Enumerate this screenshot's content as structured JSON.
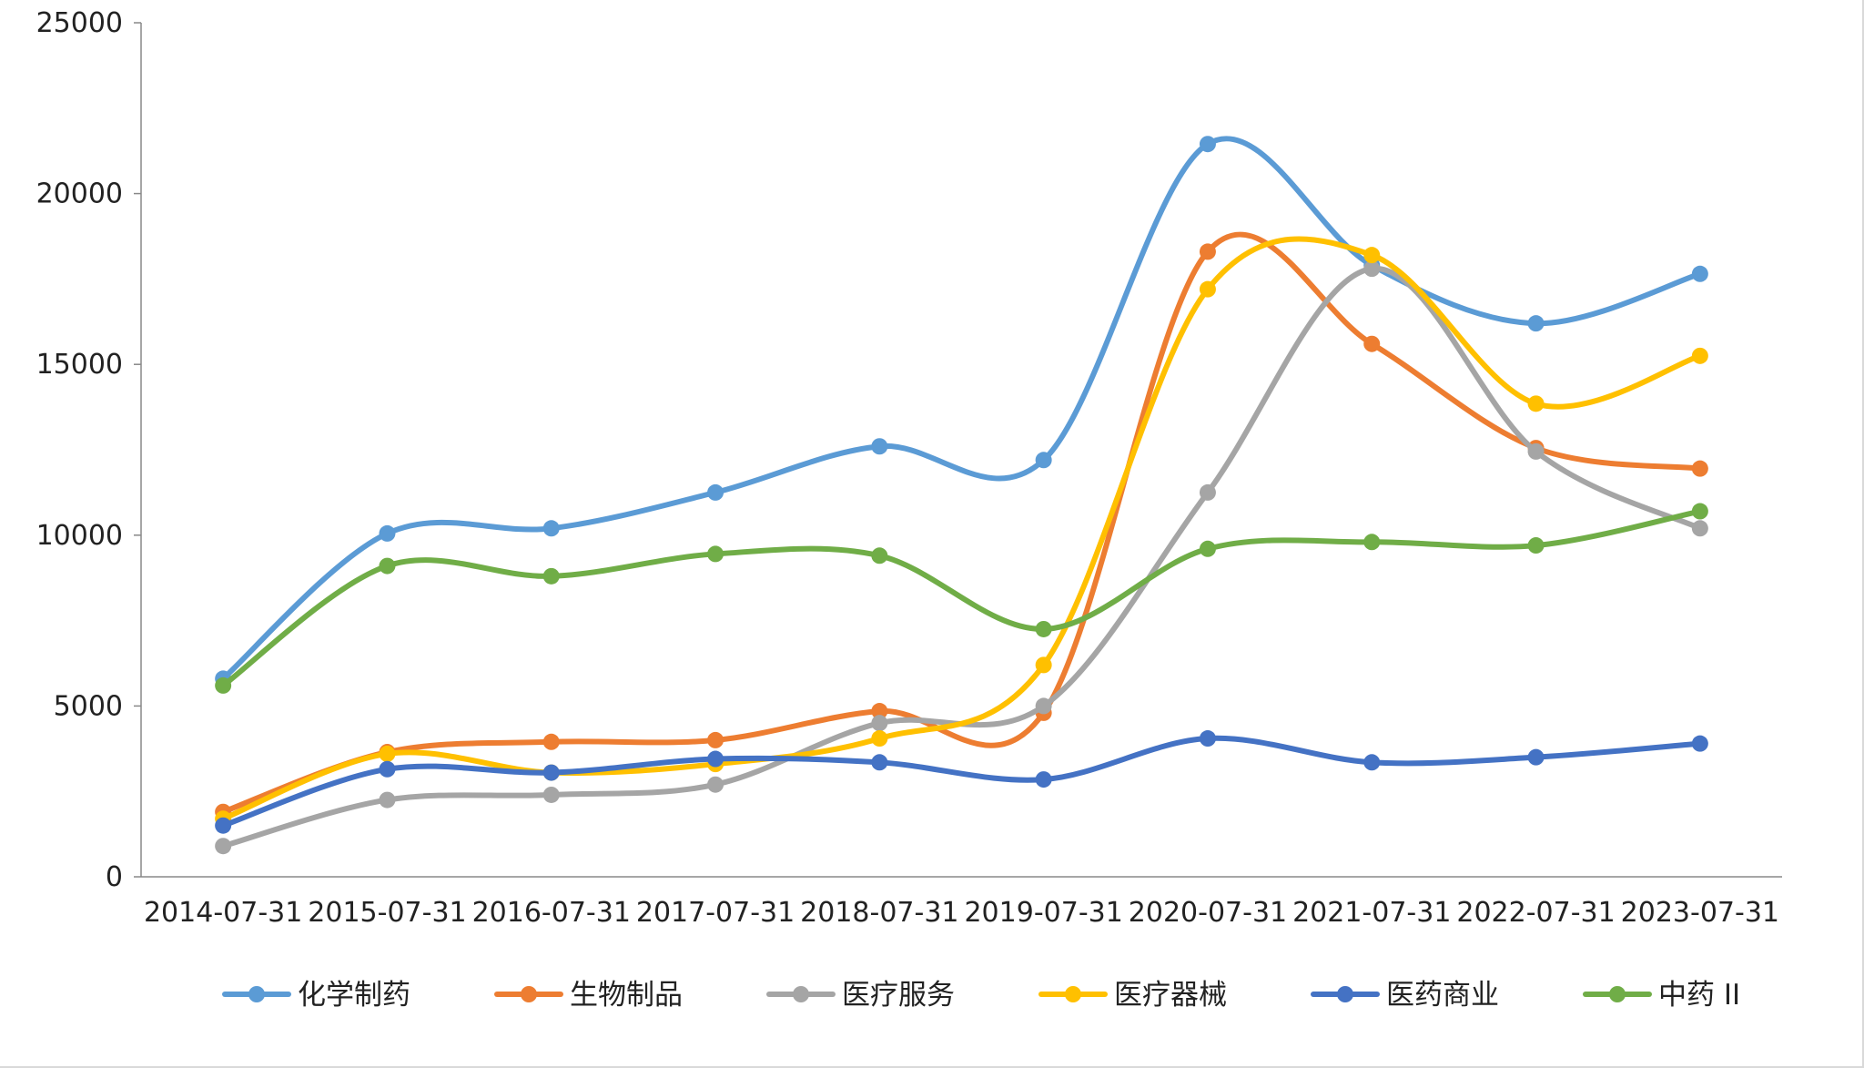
{
  "chart_data": {
    "type": "line",
    "smooth": true,
    "markers": true,
    "grid": false,
    "legend_position": "bottom",
    "categories": [
      "2014-07-31",
      "2015-07-31",
      "2016-07-31",
      "2017-07-31",
      "2018-07-31",
      "2019-07-31",
      "2020-07-31",
      "2021-07-31",
      "2022-07-31",
      "2023-07-31"
    ],
    "ylim": [
      0,
      25000
    ],
    "yticks": [
      "0",
      "5000",
      "10000",
      "15000",
      "20000",
      "25000"
    ],
    "series": [
      {
        "name": "化学制药",
        "color": "#5B9BD5",
        "values": [
          5800,
          10050,
          10200,
          11250,
          12600,
          12200,
          21450,
          17900,
          16200,
          17650
        ]
      },
      {
        "name": "生物制品",
        "color": "#ED7D31",
        "values": [
          1900,
          3650,
          3950,
          4000,
          4850,
          4800,
          18300,
          15600,
          12550,
          11950
        ]
      },
      {
        "name": "医疗服务",
        "color": "#A5A5A5",
        "values": [
          900,
          2250,
          2400,
          2700,
          4500,
          5000,
          11250,
          17800,
          12450,
          10200
        ]
      },
      {
        "name": "医疗器械",
        "color": "#FFC000",
        "values": [
          1700,
          3600,
          3050,
          3300,
          4050,
          6200,
          17200,
          18200,
          13850,
          15250
        ]
      },
      {
        "name": "医药商业",
        "color": "#4472C4",
        "values": [
          1500,
          3150,
          3050,
          3450,
          3350,
          2850,
          4050,
          3350,
          3500,
          3900
        ]
      },
      {
        "name": "中药 II",
        "color": "#70AD47",
        "values": [
          5600,
          9100,
          8800,
          9450,
          9400,
          7250,
          9600,
          9800,
          9700,
          10700
        ]
      }
    ]
  }
}
